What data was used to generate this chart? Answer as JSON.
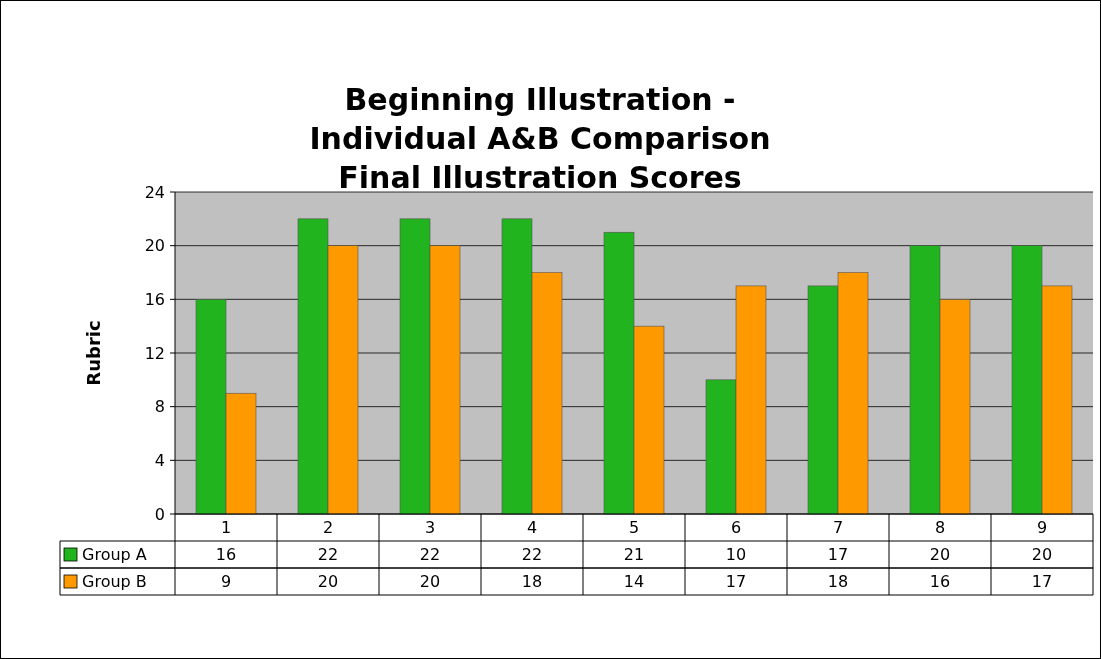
{
  "chart_data": {
    "type": "bar",
    "title": "Beginning Illustration -\nIndividual A&B Comparison\nFinal Illustration Scores",
    "ylabel": "Rubric",
    "categories": [
      "1",
      "2",
      "3",
      "4",
      "5",
      "6",
      "7",
      "8",
      "9"
    ],
    "series": [
      {
        "name": "Group A",
        "color": "#22b41e",
        "values": [
          16,
          22,
          22,
          22,
          21,
          10,
          17,
          20,
          20
        ]
      },
      {
        "name": "Group B",
        "color": "#ff9900",
        "values": [
          9,
          20,
          20,
          18,
          14,
          17,
          18,
          16,
          17
        ]
      }
    ],
    "ylim": [
      0,
      24
    ],
    "yticks": [
      0,
      4,
      8,
      12,
      16,
      20,
      24
    ],
    "grid": "y",
    "legend": "bottom left",
    "data_labels": true
  }
}
